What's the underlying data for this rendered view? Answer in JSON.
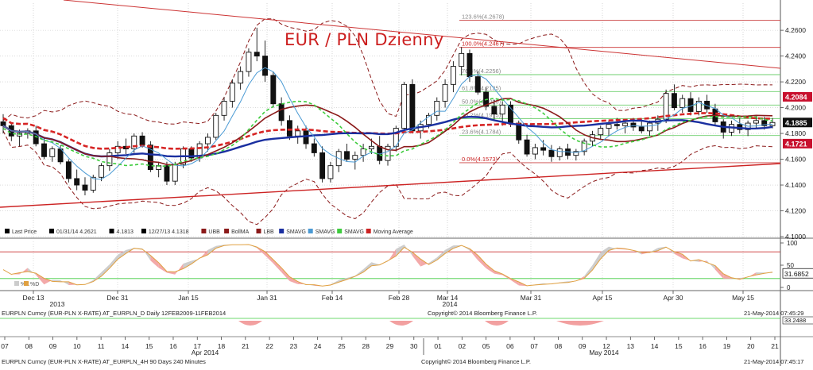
{
  "chart_data": {
    "type": "candlestick",
    "title": "EUR / PLN Dzienny",
    "y_axis": {
      "ticks": [
        "4.2600",
        "4.2400",
        "4.2200",
        "4.2000",
        "4.1800",
        "4.1600",
        "4.1400",
        "4.1200",
        "4.1000"
      ],
      "range": [
        4.1,
        4.265
      ]
    },
    "price_tags": [
      {
        "value": "4.2084",
        "color": "#c8102e"
      },
      {
        "value": "4.1885",
        "color": "#111111"
      },
      {
        "value": "4.1721",
        "color": "#c8102e"
      }
    ],
    "fib_levels": [
      {
        "label": "123.6%(4.2678)",
        "value": 4.2678
      },
      {
        "label": "100.0%(4.2467)",
        "value": 4.2467
      },
      {
        "label": "76.4%(4.2256)",
        "value": 4.2256
      },
      {
        "label": "61.8%(4.2125)",
        "value": 4.2125
      },
      {
        "label": "50.0%(4.2020)",
        "value": 4.202
      },
      {
        "label": "38.2%(4.1915)",
        "value": 4.1915
      },
      {
        "label": "23.6%(4.1784)",
        "value": 4.1784
      },
      {
        "label": "0.0%(4.1573)",
        "value": 4.1573
      }
    ],
    "legend": [
      {
        "key": "lastprice",
        "label": "Last Price",
        "color": "#000000"
      },
      {
        "key": "high",
        "label": "01/31/14 4.2621",
        "color": "#000000"
      },
      {
        "key": "close",
        "label": "4.1813",
        "color": "#000000"
      },
      {
        "key": "low",
        "label": "12/27/13 4.1318",
        "color": "#000000"
      },
      {
        "key": "ubb",
        "label": "UBB",
        "color": "#8b1a1a"
      },
      {
        "key": "bollma",
        "label": "BollMA",
        "color": "#8b1a1a"
      },
      {
        "key": "lbb",
        "label": "LBB",
        "color": "#8b1a1a"
      },
      {
        "key": "smavg1",
        "label": "SMAVG",
        "color": "#1a2fa0"
      },
      {
        "key": "smavg2",
        "label": "SMAVG",
        "color": "#4a9ad4"
      },
      {
        "key": "smavg3",
        "label": "SMAVG",
        "color": "#3ecc3e"
      },
      {
        "key": "ma",
        "label": "Moving Average",
        "color": "#cc2222"
      }
    ],
    "oscillator": {
      "ticks": [
        "100",
        "50",
        "0"
      ],
      "value_tag": "31.6852",
      "legend": [
        "%K",
        "%D"
      ]
    },
    "x_axis_daily": {
      "labels": [
        "Dec 13",
        "Dec 31",
        "Jan 15",
        "Jan 31",
        "Feb 14",
        "Feb 28",
        "Mar 14",
        "Mar 31",
        "Apr 15",
        "Apr 30",
        "May 15"
      ],
      "years": [
        {
          "label": "2013",
          "after": "Dec 13"
        },
        {
          "label": "2014",
          "after": "Mar 14"
        }
      ]
    },
    "x_axis_intraday": {
      "labels": [
        "07",
        "08",
        "09",
        "10",
        "11",
        "14",
        "15",
        "16",
        "17",
        "18",
        "21",
        "22",
        "23",
        "24",
        "25",
        "28",
        "29",
        "30",
        "01",
        "02",
        "05",
        "06",
        "07",
        "08",
        "09",
        "12",
        "13",
        "14",
        "15",
        "16",
        "19",
        "20",
        "21"
      ],
      "months": [
        {
          "label": "Apr 2014",
          "after": "17"
        },
        {
          "label": "May 2014",
          "after": "09"
        }
      ]
    },
    "candles": [
      [
        4.189,
        4.195,
        4.18,
        4.186
      ],
      [
        4.186,
        4.188,
        4.174,
        4.178
      ],
      [
        4.178,
        4.183,
        4.17,
        4.18
      ],
      [
        4.18,
        4.184,
        4.176,
        4.182
      ],
      [
        4.182,
        4.186,
        4.17,
        4.172
      ],
      [
        4.172,
        4.176,
        4.16,
        4.162
      ],
      [
        4.162,
        4.17,
        4.158,
        4.168
      ],
      [
        4.168,
        4.171,
        4.156,
        4.158
      ],
      [
        4.158,
        4.16,
        4.142,
        4.145
      ],
      [
        4.145,
        4.152,
        4.136,
        4.14
      ],
      [
        4.14,
        4.146,
        4.132,
        4.136
      ],
      [
        4.136,
        4.148,
        4.134,
        4.146
      ],
      [
        4.146,
        4.157,
        4.143,
        4.155
      ],
      [
        4.155,
        4.168,
        4.151,
        4.165
      ],
      [
        4.165,
        4.174,
        4.16,
        4.17
      ],
      [
        4.17,
        4.176,
        4.164,
        4.168
      ],
      [
        4.168,
        4.18,
        4.165,
        4.178
      ],
      [
        4.178,
        4.181,
        4.169,
        4.171
      ],
      [
        4.171,
        4.174,
        4.15,
        4.152
      ],
      [
        4.152,
        4.158,
        4.146,
        4.155
      ],
      [
        4.155,
        4.158,
        4.14,
        4.143
      ],
      [
        4.143,
        4.158,
        4.14,
        4.156
      ],
      [
        4.156,
        4.17,
        4.153,
        4.168
      ],
      [
        4.168,
        4.17,
        4.158,
        4.161
      ],
      [
        4.161,
        4.174,
        4.158,
        4.172
      ],
      [
        4.172,
        4.18,
        4.166,
        4.177
      ],
      [
        4.177,
        4.196,
        4.175,
        4.194
      ],
      [
        4.194,
        4.208,
        4.19,
        4.205
      ],
      [
        4.205,
        4.222,
        4.2,
        4.219
      ],
      [
        4.219,
        4.232,
        4.214,
        4.228
      ],
      [
        4.228,
        4.246,
        4.224,
        4.243
      ],
      [
        4.243,
        4.262,
        4.236,
        4.24
      ],
      [
        4.24,
        4.252,
        4.22,
        4.225
      ],
      [
        4.225,
        4.228,
        4.2,
        4.203
      ],
      [
        4.203,
        4.208,
        4.186,
        4.19
      ],
      [
        4.19,
        4.194,
        4.175,
        4.178
      ],
      [
        4.178,
        4.186,
        4.172,
        4.182
      ],
      [
        4.182,
        4.186,
        4.168,
        4.172
      ],
      [
        4.172,
        4.176,
        4.162,
        4.165
      ],
      [
        4.165,
        4.17,
        4.142,
        4.145
      ],
      [
        4.145,
        4.158,
        4.142,
        4.155
      ],
      [
        4.155,
        4.168,
        4.15,
        4.166
      ],
      [
        4.166,
        4.172,
        4.158,
        4.16
      ],
      [
        4.16,
        4.166,
        4.152,
        4.163
      ],
      [
        4.163,
        4.172,
        4.158,
        4.168
      ],
      [
        4.168,
        4.176,
        4.164,
        4.17
      ],
      [
        4.17,
        4.178,
        4.156,
        4.159
      ],
      [
        4.159,
        4.172,
        4.155,
        4.17
      ],
      [
        4.17,
        4.186,
        4.166,
        4.184
      ],
      [
        4.184,
        4.22,
        4.18,
        4.218
      ],
      [
        4.218,
        4.222,
        4.18,
        4.182
      ],
      [
        4.182,
        4.19,
        4.176,
        4.187
      ],
      [
        4.187,
        4.196,
        4.184,
        4.194
      ],
      [
        4.194,
        4.208,
        4.19,
        4.205
      ],
      [
        4.205,
        4.222,
        4.2,
        4.218
      ],
      [
        4.218,
        4.236,
        4.212,
        4.232
      ],
      [
        4.232,
        4.247,
        4.225,
        4.242
      ],
      [
        4.242,
        4.245,
        4.22,
        4.224
      ],
      [
        4.224,
        4.228,
        4.21,
        4.212
      ],
      [
        4.212,
        4.216,
        4.198,
        4.201
      ],
      [
        4.201,
        4.206,
        4.19,
        4.195
      ],
      [
        4.195,
        4.205,
        4.186,
        4.202
      ],
      [
        4.202,
        4.205,
        4.185,
        4.188
      ],
      [
        4.188,
        4.19,
        4.172,
        4.175
      ],
      [
        4.175,
        4.179,
        4.162,
        4.164
      ],
      [
        4.164,
        4.172,
        4.16,
        4.169
      ],
      [
        4.169,
        4.175,
        4.163,
        4.167
      ],
      [
        4.167,
        4.171,
        4.158,
        4.162
      ],
      [
        4.162,
        4.17,
        4.159,
        4.168
      ],
      [
        4.168,
        4.172,
        4.16,
        4.163
      ],
      [
        4.163,
        4.168,
        4.159,
        4.166
      ],
      [
        4.166,
        4.176,
        4.163,
        4.174
      ],
      [
        4.174,
        4.182,
        4.17,
        4.179
      ],
      [
        4.179,
        4.186,
        4.175,
        4.184
      ],
      [
        4.184,
        4.19,
        4.178,
        4.187
      ],
      [
        4.187,
        4.192,
        4.183,
        4.186
      ],
      [
        4.186,
        4.19,
        4.18,
        4.188
      ],
      [
        4.188,
        4.192,
        4.182,
        4.185
      ],
      [
        4.185,
        4.19,
        4.18,
        4.182
      ],
      [
        4.182,
        4.19,
        4.178,
        4.188
      ],
      [
        4.188,
        4.194,
        4.182,
        4.191
      ],
      [
        4.191,
        4.214,
        4.188,
        4.211
      ],
      [
        4.211,
        4.218,
        4.198,
        4.2
      ],
      [
        4.2,
        4.21,
        4.196,
        4.207
      ],
      [
        4.207,
        4.212,
        4.194,
        4.197
      ],
      [
        4.197,
        4.208,
        4.194,
        4.205
      ],
      [
        4.205,
        4.21,
        4.196,
        4.199
      ],
      [
        4.199,
        4.203,
        4.186,
        4.189
      ],
      [
        4.189,
        4.191,
        4.176,
        4.181
      ],
      [
        4.181,
        4.19,
        4.178,
        4.187
      ],
      [
        4.187,
        4.192,
        4.18,
        4.183
      ],
      [
        4.183,
        4.19,
        4.178,
        4.188
      ],
      [
        4.188,
        4.194,
        4.184,
        4.19
      ],
      [
        4.19,
        4.193,
        4.183,
        4.186
      ],
      [
        4.186,
        4.192,
        4.184,
        4.1885
      ]
    ]
  },
  "footer": {
    "daily_source": "EURPLN Curncy (EUR-PLN X-RATE) AT_EURPLN_D  Daily 12FEB2009-11FEB2014",
    "intraday_source": "EURPLN Curncy (EUR-PLN X-RATE) AT_EURPLN_4H 90 Days 240 Minutes",
    "copyright": "Copyright© 2014 Bloomberg Finance L.P.",
    "timestamp": "21-May-2014 07:45:29",
    "timestamp2": "21-May-2014 07:45:17",
    "inset_tag": "33.2488"
  }
}
